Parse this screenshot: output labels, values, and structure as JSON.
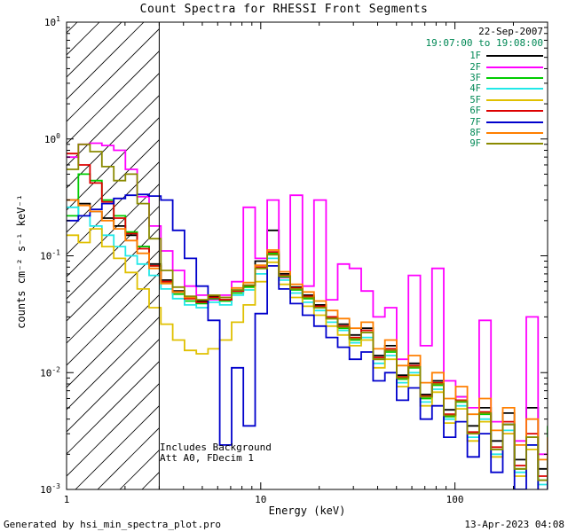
{
  "title": "Count Spectra for RHESSI Front Segments",
  "header": {
    "date": "22-Sep-2007",
    "time_range": "19:07:00 to 19:08:00"
  },
  "legend": {
    "label_color": "#008855"
  },
  "annotations": {
    "line1": "Includes Background",
    "line2": "Att A0, FDecim 1"
  },
  "footer": {
    "generated_by": "Generated by hsi_min_spectra_plot.pro",
    "timestamp": "13-Apr-2023 04:08"
  },
  "chart_data": {
    "type": "line",
    "title": "Count Spectra for RHESSI Front Segments",
    "xlabel": "Energy (keV)",
    "ylabel": "counts cm⁻² s⁻¹ keV⁻¹",
    "xscale": "log",
    "yscale": "log",
    "xlim": [
      1,
      300
    ],
    "ylim": [
      0.001,
      10
    ],
    "step": true,
    "hatch_region_kev": [
      1,
      3
    ],
    "x_ticks": [
      {
        "value": 1,
        "label": "1"
      },
      {
        "value": 10,
        "label": "10"
      },
      {
        "value": 100,
        "label": "100"
      }
    ],
    "x_minor_ticks": [
      2,
      3,
      4,
      5,
      6,
      7,
      8,
      9,
      20,
      30,
      40,
      50,
      60,
      70,
      80,
      90,
      200,
      300
    ],
    "y_ticks": [
      {
        "value": 0.001,
        "base": "10",
        "exponent": "-3"
      },
      {
        "value": 0.01,
        "base": "10",
        "exponent": "-2"
      },
      {
        "value": 0.1,
        "base": "10",
        "exponent": "-1"
      },
      {
        "value": 1,
        "base": "10",
        "exponent": "0"
      },
      {
        "value": 10,
        "base": "10",
        "exponent": "1"
      }
    ],
    "energy_kev": [
      1.0,
      1.15,
      1.32,
      1.52,
      1.75,
      2.01,
      2.31,
      2.66,
      3.06,
      3.52,
      4.05,
      4.66,
      5.35,
      6.15,
      7.08,
      8.14,
      9.36,
      10.8,
      12.4,
      14.2,
      16.4,
      18.8,
      21.7,
      24.9,
      28.6,
      32.9,
      37.9,
      43.6,
      50.1,
      57.6,
      66.3,
      76.2,
      87.6,
      100.8,
      115.9,
      133.3,
      153.3,
      176.3,
      202.7,
      233.1,
      268.1,
      300
    ],
    "series": [
      {
        "name": "1F",
        "color": "#000000",
        "values": [
          0.3,
          0.28,
          0.24,
          0.21,
          0.18,
          0.15,
          0.12,
          0.085,
          0.062,
          0.05,
          0.044,
          0.041,
          0.045,
          0.042,
          0.05,
          0.055,
          0.09,
          0.165,
          0.07,
          0.054,
          0.046,
          0.038,
          0.03,
          0.026,
          0.021,
          0.024,
          0.014,
          0.017,
          0.0095,
          0.012,
          0.0065,
          0.0085,
          0.0048,
          0.0062,
          0.0035,
          0.005,
          0.0026,
          0.0045,
          0.0018,
          0.005,
          0.0015,
          0.0028
        ]
      },
      {
        "name": "2F",
        "color": "#ff00ff",
        "values": [
          0.7,
          0.9,
          0.92,
          0.88,
          0.8,
          0.55,
          0.32,
          0.18,
          0.11,
          0.075,
          0.055,
          0.046,
          0.042,
          0.046,
          0.06,
          0.26,
          0.095,
          0.3,
          0.065,
          0.33,
          0.055,
          0.3,
          0.042,
          0.085,
          0.078,
          0.05,
          0.03,
          0.036,
          0.013,
          0.068,
          0.017,
          0.078,
          0.0085,
          0.0062,
          0.005,
          0.028,
          0.0038,
          0.003,
          0.0026,
          0.03,
          0.002,
          0.0017
        ]
      },
      {
        "name": "3F",
        "color": "#00cc00",
        "values": [
          0.22,
          0.5,
          0.44,
          0.3,
          0.22,
          0.16,
          0.12,
          0.082,
          0.058,
          0.047,
          0.041,
          0.039,
          0.043,
          0.041,
          0.048,
          0.054,
          0.078,
          0.105,
          0.066,
          0.051,
          0.043,
          0.036,
          0.029,
          0.024,
          0.019,
          0.022,
          0.013,
          0.015,
          0.0088,
          0.011,
          0.006,
          0.0078,
          0.0042,
          0.0056,
          0.003,
          0.0044,
          0.0022,
          0.0036,
          0.0015,
          0.0028,
          0.0012,
          0.0035
        ]
      },
      {
        "name": "4F",
        "color": "#22e8e8",
        "values": [
          0.26,
          0.22,
          0.18,
          0.15,
          0.12,
          0.1,
          0.085,
          0.068,
          0.052,
          0.043,
          0.038,
          0.036,
          0.04,
          0.038,
          0.046,
          0.051,
          0.07,
          0.095,
          0.062,
          0.048,
          0.04,
          0.034,
          0.027,
          0.023,
          0.018,
          0.02,
          0.012,
          0.014,
          0.0082,
          0.01,
          0.0056,
          0.0072,
          0.004,
          0.0052,
          0.0028,
          0.004,
          0.002,
          0.0032,
          0.0014,
          0.0024,
          0.0011,
          0.0018
        ]
      },
      {
        "name": "5F",
        "color": "#e0c000",
        "values": [
          0.15,
          0.13,
          0.17,
          0.12,
          0.095,
          0.072,
          0.052,
          0.036,
          0.026,
          0.019,
          0.0155,
          0.0145,
          0.016,
          0.019,
          0.027,
          0.038,
          0.06,
          0.088,
          0.057,
          0.044,
          0.037,
          0.031,
          0.025,
          0.021,
          0.017,
          0.019,
          0.011,
          0.013,
          0.0076,
          0.0095,
          0.0052,
          0.0068,
          0.0037,
          0.0049,
          0.0026,
          0.0038,
          0.0019,
          0.003,
          0.0013,
          0.0022,
          0.0009,
          0.0015
        ]
      },
      {
        "name": "6F",
        "color": "#dd0000",
        "values": [
          0.75,
          0.6,
          0.42,
          0.29,
          0.21,
          0.155,
          0.115,
          0.082,
          0.06,
          0.049,
          0.043,
          0.04,
          0.044,
          0.042,
          0.05,
          0.056,
          0.08,
          0.108,
          0.068,
          0.053,
          0.045,
          0.037,
          0.03,
          0.025,
          0.02,
          0.023,
          0.0135,
          0.016,
          0.0092,
          0.0115,
          0.0063,
          0.0082,
          0.0044,
          0.0058,
          0.0031,
          0.0046,
          0.0023,
          0.0038,
          0.0016,
          0.003,
          0.0013,
          0.002
        ]
      },
      {
        "name": "7F",
        "color": "#0000cc",
        "values": [
          0.2,
          0.22,
          0.25,
          0.28,
          0.31,
          0.33,
          0.335,
          0.325,
          0.3,
          0.165,
          0.095,
          0.055,
          0.028,
          0.0024,
          0.011,
          0.0035,
          0.032,
          0.082,
          0.052,
          0.039,
          0.031,
          0.025,
          0.02,
          0.0165,
          0.013,
          0.015,
          0.0085,
          0.01,
          0.0058,
          0.0074,
          0.004,
          0.0052,
          0.0028,
          0.0038,
          0.0019,
          0.003,
          0.0014,
          0.0036,
          0.001,
          0.0024,
          0.0008,
          0.0013
        ]
      },
      {
        "name": "8F",
        "color": "#ff7f00",
        "values": [
          0.3,
          0.27,
          0.24,
          0.2,
          0.17,
          0.135,
          0.105,
          0.078,
          0.058,
          0.049,
          0.044,
          0.042,
          0.046,
          0.044,
          0.053,
          0.059,
          0.083,
          0.112,
          0.073,
          0.057,
          0.049,
          0.041,
          0.034,
          0.029,
          0.024,
          0.027,
          0.016,
          0.019,
          0.0115,
          0.014,
          0.0082,
          0.01,
          0.006,
          0.0076,
          0.0044,
          0.006,
          0.0032,
          0.005,
          0.0024,
          0.004,
          0.0018,
          0.0028
        ]
      },
      {
        "name": "9F",
        "color": "#8a8a00",
        "values": [
          0.55,
          0.9,
          0.78,
          0.58,
          0.44,
          0.5,
          0.28,
          0.14,
          0.075,
          0.054,
          0.045,
          0.042,
          0.046,
          0.044,
          0.051,
          0.056,
          0.078,
          0.102,
          0.067,
          0.052,
          0.044,
          0.036,
          0.029,
          0.0245,
          0.0195,
          0.022,
          0.013,
          0.0155,
          0.009,
          0.0112,
          0.0062,
          0.008,
          0.0043,
          0.0057,
          0.003,
          0.0045,
          0.0022,
          0.0036,
          0.0015,
          0.0028,
          0.0012,
          0.0019
        ]
      }
    ]
  }
}
